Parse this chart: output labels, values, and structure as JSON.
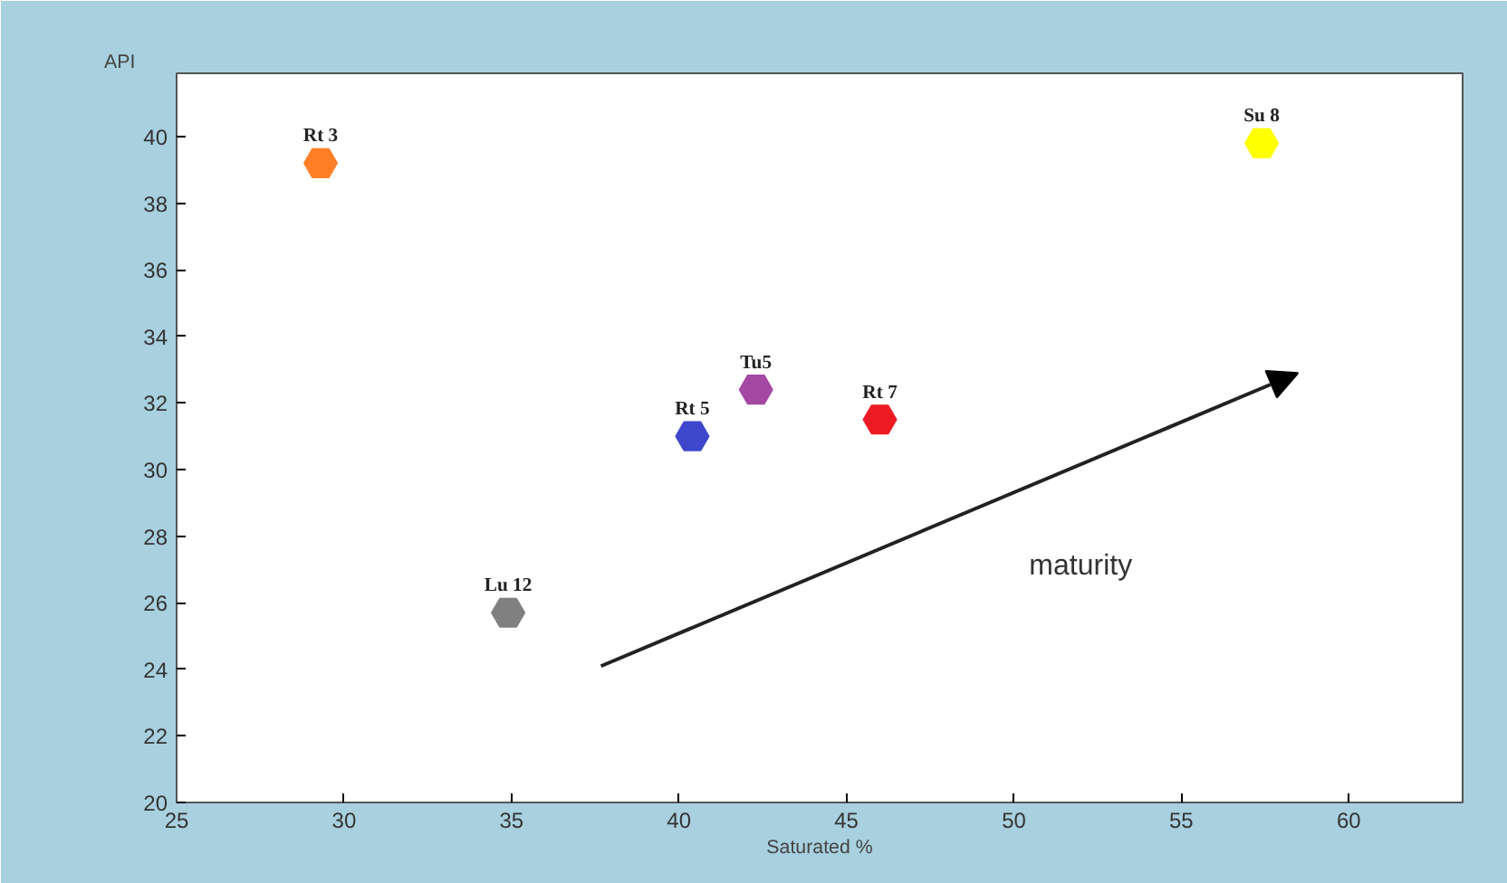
{
  "chart_data": {
    "type": "scatter",
    "xlabel": "Saturated %",
    "ylabel": "API",
    "x": [
      29.3,
      34.9,
      40.4,
      42.3,
      46.0,
      57.4
    ],
    "values": [
      39.2,
      25.7,
      31.0,
      32.4,
      31.5,
      39.8
    ],
    "colors": [
      "#ff7f27",
      "#808080",
      "#3f48cc",
      "#a349a4",
      "#ed1c24",
      "#ffff00"
    ],
    "value_labels": [
      "Rt 3",
      "Lu 12",
      "Rt 5",
      "Tu5",
      "Rt 7",
      "Su 8"
    ],
    "xlim": [
      25,
      63.4
    ],
    "ylim": [
      20,
      41.9
    ],
    "xticks": [
      25,
      30,
      35,
      40,
      45,
      50,
      55,
      60
    ],
    "yticks": [
      20,
      22,
      24,
      26,
      28,
      30,
      32,
      34,
      36,
      38,
      40
    ],
    "grid": false,
    "annotations": [
      "maturity"
    ]
  }
}
